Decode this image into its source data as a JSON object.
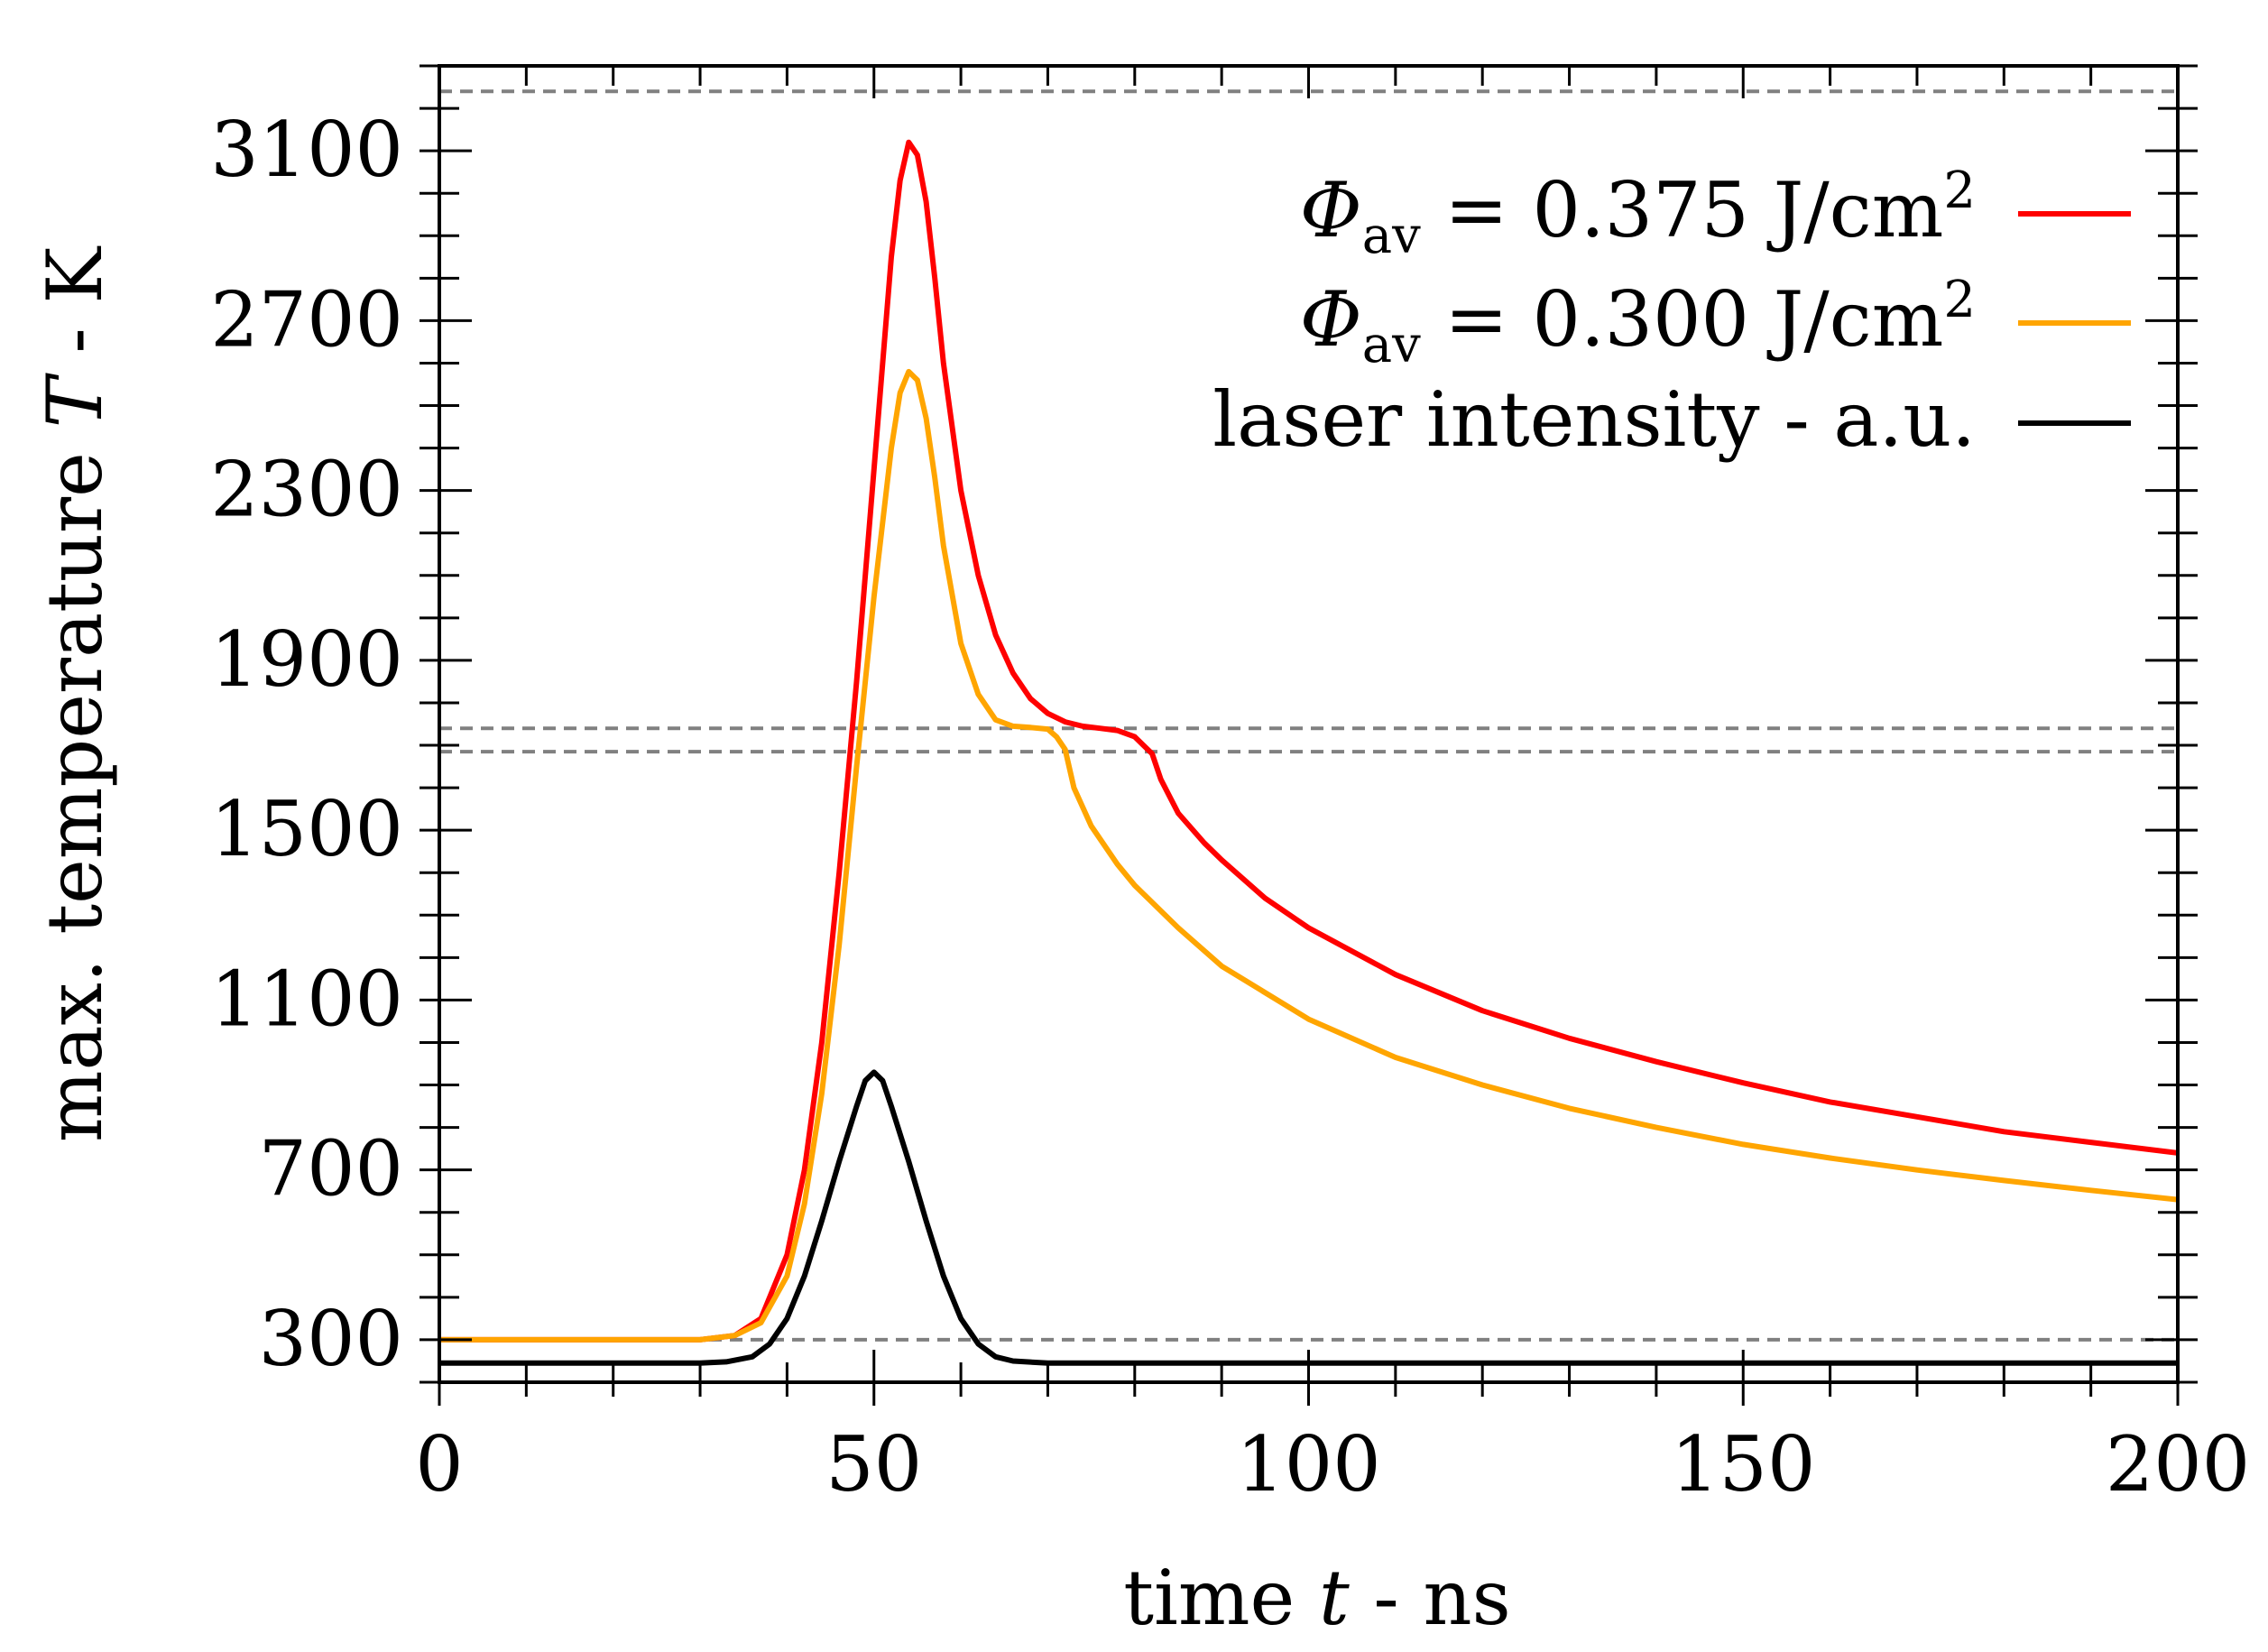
{
  "chart_data": {
    "type": "line",
    "xlabel_prefix": "time ",
    "xlabel_var": "t",
    "xlabel_suffix": " - ns",
    "ylabel_prefix": "max. temperature ",
    "ylabel_var": "T",
    "ylabel_suffix": " - K",
    "xlim": [
      0,
      200
    ],
    "ylim": [
      200,
      3300
    ],
    "xticks": [
      0,
      50,
      100,
      150,
      200
    ],
    "yticks": [
      300,
      700,
      1100,
      1500,
      1900,
      2300,
      2700,
      3100
    ],
    "x_minor_step": 10,
    "y_minor_step": 100,
    "reference_lines": [
      {
        "name": "reference-line-300",
        "y": 300
      },
      {
        "name": "reference-line-1685",
        "y": 1685
      },
      {
        "name": "reference-line-1740",
        "y": 1740
      },
      {
        "name": "reference-line-3240",
        "y": 3240
      }
    ],
    "legend_position": "top-right",
    "series": [
      {
        "name": "series-phi-0375",
        "label": "Φav = 0.375 J/cm²",
        "legend_symbol": "Φ",
        "legend_sub": "av",
        "legend_rest": " = 0.375 J/cm",
        "legend_sup": "2",
        "color": "#ff0000",
        "points": [
          [
            0,
            300
          ],
          [
            30,
            300
          ],
          [
            34,
            310
          ],
          [
            37,
            350
          ],
          [
            40,
            500
          ],
          [
            42,
            700
          ],
          [
            44,
            1000
          ],
          [
            46,
            1400
          ],
          [
            48,
            1850
          ],
          [
            50,
            2350
          ],
          [
            52,
            2850
          ],
          [
            53,
            3030
          ],
          [
            54,
            3120
          ],
          [
            55,
            3090
          ],
          [
            56,
            2980
          ],
          [
            57,
            2800
          ],
          [
            58,
            2600
          ],
          [
            60,
            2300
          ],
          [
            62,
            2100
          ],
          [
            64,
            1960
          ],
          [
            66,
            1870
          ],
          [
            68,
            1810
          ],
          [
            70,
            1775
          ],
          [
            72,
            1755
          ],
          [
            74,
            1745
          ],
          [
            76,
            1740
          ],
          [
            78,
            1735
          ],
          [
            80,
            1720
          ],
          [
            81,
            1700
          ],
          [
            82,
            1680
          ],
          [
            83,
            1620
          ],
          [
            85,
            1540
          ],
          [
            88,
            1470
          ],
          [
            90,
            1430
          ],
          [
            95,
            1340
          ],
          [
            100,
            1270
          ],
          [
            110,
            1160
          ],
          [
            120,
            1075
          ],
          [
            130,
            1010
          ],
          [
            140,
            955
          ],
          [
            150,
            905
          ],
          [
            160,
            860
          ],
          [
            170,
            825
          ],
          [
            180,
            790
          ],
          [
            190,
            765
          ],
          [
            200,
            740
          ]
        ]
      },
      {
        "name": "series-phi-0300",
        "label": "Φav = 0.300 J/cm²",
        "legend_symbol": "Φ",
        "legend_sub": "av",
        "legend_rest": " = 0.300 J/cm",
        "legend_sup": "2",
        "color": "#ffa500",
        "points": [
          [
            0,
            300
          ],
          [
            30,
            300
          ],
          [
            34,
            310
          ],
          [
            37,
            340
          ],
          [
            40,
            450
          ],
          [
            42,
            620
          ],
          [
            44,
            880
          ],
          [
            46,
            1230
          ],
          [
            48,
            1650
          ],
          [
            50,
            2050
          ],
          [
            52,
            2400
          ],
          [
            53,
            2530
          ],
          [
            54,
            2580
          ],
          [
            55,
            2560
          ],
          [
            56,
            2470
          ],
          [
            57,
            2330
          ],
          [
            58,
            2170
          ],
          [
            60,
            1940
          ],
          [
            62,
            1820
          ],
          [
            64,
            1760
          ],
          [
            66,
            1745
          ],
          [
            68,
            1742
          ],
          [
            70,
            1738
          ],
          [
            71,
            1720
          ],
          [
            72,
            1690
          ],
          [
            73,
            1600
          ],
          [
            75,
            1510
          ],
          [
            78,
            1420
          ],
          [
            80,
            1370
          ],
          [
            85,
            1270
          ],
          [
            90,
            1180
          ],
          [
            100,
            1055
          ],
          [
            110,
            965
          ],
          [
            120,
            900
          ],
          [
            130,
            845
          ],
          [
            140,
            800
          ],
          [
            150,
            760
          ],
          [
            160,
            728
          ],
          [
            170,
            700
          ],
          [
            180,
            675
          ],
          [
            190,
            652
          ],
          [
            200,
            630
          ]
        ]
      },
      {
        "name": "series-laser",
        "label": "laser intensity - a.u.",
        "legend_symbol": "",
        "legend_sub": "",
        "legend_rest": "laser intensity - a.u.",
        "legend_sup": "",
        "color": "#000000",
        "points": [
          [
            0,
            245
          ],
          [
            30,
            245
          ],
          [
            33,
            248
          ],
          [
            36,
            260
          ],
          [
            38,
            290
          ],
          [
            40,
            350
          ],
          [
            42,
            450
          ],
          [
            44,
            580
          ],
          [
            46,
            720
          ],
          [
            48,
            850
          ],
          [
            49,
            910
          ],
          [
            50,
            930
          ],
          [
            51,
            910
          ],
          [
            52,
            850
          ],
          [
            54,
            720
          ],
          [
            56,
            580
          ],
          [
            58,
            450
          ],
          [
            60,
            350
          ],
          [
            62,
            290
          ],
          [
            64,
            260
          ],
          [
            66,
            250
          ],
          [
            70,
            245
          ],
          [
            200,
            245
          ]
        ]
      }
    ]
  }
}
